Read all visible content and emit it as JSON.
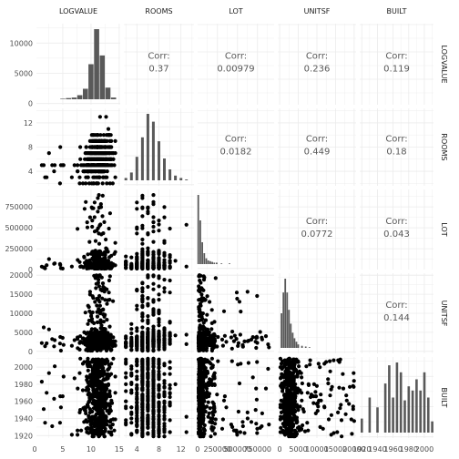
{
  "chart_data": {
    "type": "scatter",
    "variables": [
      "LOGVALUE",
      "ROOMS",
      "LOT",
      "UNITSF",
      "BUILT"
    ],
    "axes": {
      "LOGVALUE": {
        "range": [
          0,
          15.5
        ],
        "ticks": [
          0,
          5,
          10,
          15
        ],
        "tick_labels": [
          "0",
          "5",
          "10",
          "15"
        ]
      },
      "ROOMS": {
        "range": [
          1.3,
          14.7
        ],
        "ticks": [
          4,
          8,
          12
        ],
        "tick_labels": [
          "4",
          "8",
          "12"
        ]
      },
      "LOT": {
        "range": [
          -20000,
          980000
        ],
        "ticks": [
          0,
          250000,
          500000,
          750000
        ],
        "tick_labels": [
          "0",
          "250000",
          "500000",
          "750000"
        ]
      },
      "UNITSF": {
        "range": [
          -1000,
          21000
        ],
        "ticks": [
          0,
          5000,
          10000,
          15000,
          20000
        ],
        "tick_labels": [
          "0",
          "5000",
          "10000",
          "15000",
          "20000"
        ]
      },
      "BUILT": {
        "range": [
          1915,
          2014
        ],
        "ticks": [
          1920,
          1940,
          1960,
          1980,
          2000
        ],
        "tick_labels": [
          "1920",
          "1940",
          "1960",
          "1980",
          "2000"
        ]
      }
    },
    "diag_y_axis": {
      "range": [
        -500,
        13500
      ],
      "ticks": [
        0,
        5000,
        10000
      ],
      "tick_labels": [
        "0",
        "5000",
        "10000"
      ]
    },
    "correlations": [
      {
        "row": "LOGVALUE",
        "col": "ROOMS",
        "label": "Corr:",
        "value": "0.37"
      },
      {
        "row": "LOGVALUE",
        "col": "LOT",
        "label": "Corr:",
        "value": "0.00979"
      },
      {
        "row": "LOGVALUE",
        "col": "UNITSF",
        "label": "Corr:",
        "value": "0.236"
      },
      {
        "row": "LOGVALUE",
        "col": "BUILT",
        "label": "Corr:",
        "value": "0.119"
      },
      {
        "row": "ROOMS",
        "col": "LOT",
        "label": "Corr:",
        "value": "0.0182"
      },
      {
        "row": "ROOMS",
        "col": "UNITSF",
        "label": "Corr:",
        "value": "0.449"
      },
      {
        "row": "ROOMS",
        "col": "BUILT",
        "label": "Corr:",
        "value": "0.18"
      },
      {
        "row": "LOT",
        "col": "UNITSF",
        "label": "Corr:",
        "value": "0.0772"
      },
      {
        "row": "LOT",
        "col": "BUILT",
        "label": "Corr:",
        "value": "0.043"
      },
      {
        "row": "UNITSF",
        "col": "BUILT",
        "label": "Corr:",
        "value": "0.144"
      }
    ],
    "histograms": {
      "LOGVALUE": {
        "bins": [
          [
            5,
            100
          ],
          [
            6,
            200
          ],
          [
            7,
            300
          ],
          [
            8,
            700
          ],
          [
            9,
            1800
          ],
          [
            10,
            6000
          ],
          [
            11,
            12000
          ],
          [
            12,
            7500
          ],
          [
            13,
            2000
          ],
          [
            14,
            300
          ]
        ],
        "bin_width": 0.9
      },
      "ROOMS": {
        "bins": [
          [
            2,
            3
          ],
          [
            3,
            10
          ],
          [
            4,
            30
          ],
          [
            5,
            55
          ],
          [
            6,
            85
          ],
          [
            7,
            75
          ],
          [
            8,
            50
          ],
          [
            9,
            28
          ],
          [
            10,
            14
          ],
          [
            11,
            6
          ],
          [
            12,
            3
          ],
          [
            13,
            1
          ]
        ],
        "bin_width": 0.5
      },
      "LOT": {
        "bins": [
          [
            10000,
            95
          ],
          [
            35000,
            60
          ],
          [
            60000,
            30
          ],
          [
            85000,
            15
          ],
          [
            110000,
            8
          ],
          [
            135000,
            5
          ],
          [
            160000,
            4
          ],
          [
            185000,
            3
          ],
          [
            210000,
            2
          ],
          [
            240000,
            2
          ],
          [
            300000,
            1
          ],
          [
            400000,
            1
          ]
        ],
        "bin_width": 20000
      },
      "UNITSF": {
        "bins": [
          [
            500,
            50
          ],
          [
            1000,
            80
          ],
          [
            1500,
            100
          ],
          [
            2000,
            80
          ],
          [
            2500,
            55
          ],
          [
            3000,
            35
          ],
          [
            3500,
            22
          ],
          [
            4000,
            14
          ],
          [
            4500,
            9
          ],
          [
            5000,
            5
          ],
          [
            6000,
            3
          ],
          [
            7000,
            2
          ],
          [
            8000,
            1
          ]
        ],
        "bin_width": 450
      },
      "BUILT": {
        "bins": [
          [
            1920,
            10
          ],
          [
            1930,
            25
          ],
          [
            1940,
            18
          ],
          [
            1950,
            35
          ],
          [
            1955,
            48
          ],
          [
            1960,
            25
          ],
          [
            1965,
            50
          ],
          [
            1970,
            43
          ],
          [
            1975,
            23
          ],
          [
            1980,
            33
          ],
          [
            1985,
            30
          ],
          [
            1990,
            38
          ],
          [
            1995,
            30
          ],
          [
            2000,
            43
          ],
          [
            2005,
            25
          ],
          [
            2010,
            8
          ]
        ],
        "bin_width": 3
      }
    }
  }
}
